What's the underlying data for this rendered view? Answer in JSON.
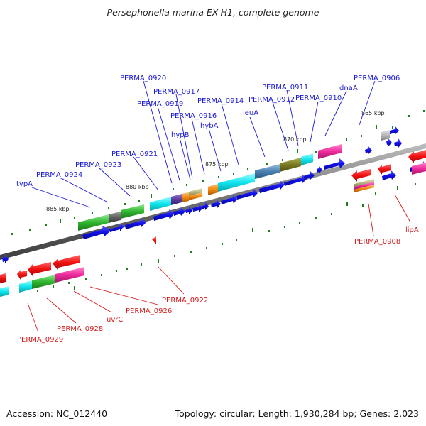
{
  "title": "Persephonella marina EX-H1, complete genome",
  "footer": {
    "accession": "Accession: NC_012440",
    "topology": "Topology: circular; Length: 1,930,284 bp; Genes: 2,023"
  },
  "ticks": [
    "865 kbp",
    "870 kbp",
    "875 kbp",
    "880 kbp",
    "885 kbp"
  ],
  "top_labels": [
    "typA",
    "PERMA_0924",
    "PERMA_0923",
    "PERMA_0921",
    "PERMA_0920",
    "PERMA_0919",
    "PERMA_0917",
    "hypB",
    "PERMA_0916",
    "hybA",
    "PERMA_0914",
    "leuA",
    "PERMA_0912",
    "PERMA_0911",
    "PERMA_0910",
    "dnaA",
    "PERMA_0906"
  ],
  "bottom_labels": [
    "PERMA_0929",
    "PERMA_0928",
    "uvrC",
    "PERMA_0926",
    "PERMA_0922",
    "PERMA_0908",
    "lipA"
  ],
  "colors": {
    "forward_gene": "#1515e0",
    "reverse_gene": "#e01515",
    "backbone": "#888888",
    "tick_mark": "#1f7f1f"
  }
}
